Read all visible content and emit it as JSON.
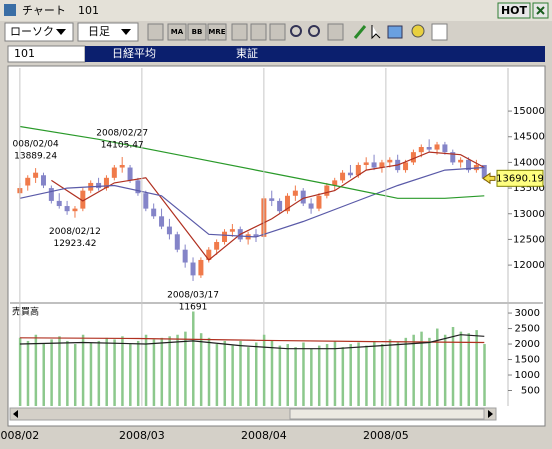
{
  "window": {
    "title": "チャート",
    "code": "101",
    "hot": "HOT"
  },
  "toolbar": {
    "chart_type": "ローソク",
    "period": "日足",
    "icons": [
      "MA",
      "BB",
      "MRE"
    ]
  },
  "info": {
    "code": "101",
    "name": "日経平均",
    "market": "東証"
  },
  "chart_data": {
    "type": "candlestick",
    "up_color": "#f07a4a",
    "down_color": "#8484c8",
    "xlim": [
      -1,
      61
    ],
    "xticks": [
      {
        "value": 0,
        "label": "008/02"
      },
      {
        "value": 15.5,
        "label": "2008/03"
      },
      {
        "value": 31,
        "label": "2008/04"
      },
      {
        "value": 46.5,
        "label": "2008/05"
      }
    ],
    "ylim": [
      11320,
      15800
    ],
    "yticks": [
      12000,
      12500,
      13000,
      13500,
      14000,
      14500,
      15000
    ],
    "grid": true,
    "candles": [
      [
        13400,
        13600,
        13300,
        13500
      ],
      [
        13550,
        13750,
        13450,
        13700
      ],
      [
        13700,
        13889.24,
        13600,
        13800
      ],
      [
        13750,
        13800,
        13500,
        13550
      ],
      [
        13500,
        13550,
        13200,
        13250
      ],
      [
        13250,
        13400,
        13100,
        13150
      ],
      [
        13150,
        13250,
        12980,
        13050
      ],
      [
        13050,
        13150,
        12923.42,
        13100
      ],
      [
        13100,
        13500,
        13050,
        13450
      ],
      [
        13450,
        13650,
        13400,
        13600
      ],
      [
        13600,
        13700,
        13450,
        13500
      ],
      [
        13500,
        13750,
        13450,
        13700
      ],
      [
        13700,
        13950,
        13650,
        13900
      ],
      [
        13900,
        14105.47,
        13800,
        13950
      ],
      [
        13900,
        13950,
        13600,
        13650
      ],
      [
        13650,
        13700,
        13350,
        13400
      ],
      [
        13400,
        13450,
        13050,
        13100
      ],
      [
        13100,
        13200,
        12900,
        12950
      ],
      [
        12950,
        13100,
        12700,
        12750
      ],
      [
        12750,
        12900,
        12500,
        12600
      ],
      [
        12600,
        12650,
        12250,
        12300
      ],
      [
        12300,
        12400,
        11950,
        12050
      ],
      [
        12050,
        12150,
        11691,
        11800
      ],
      [
        11800,
        12150,
        11750,
        12100
      ],
      [
        12100,
        12350,
        12050,
        12300
      ],
      [
        12300,
        12500,
        12200,
        12450
      ],
      [
        12450,
        12700,
        12400,
        12650
      ],
      [
        12650,
        12800,
        12550,
        12700
      ],
      [
        12700,
        12750,
        12450,
        12500
      ],
      [
        12500,
        12650,
        12400,
        12600
      ],
      [
        12600,
        12700,
        12450,
        12550
      ],
      [
        12550,
        13350,
        12550,
        13300
      ],
      [
        13300,
        13450,
        13150,
        13250
      ],
      [
        13250,
        13300,
        13000,
        13050
      ],
      [
        13050,
        13400,
        13000,
        13350
      ],
      [
        13350,
        13550,
        13250,
        13450
      ],
      [
        13450,
        13500,
        13150,
        13200
      ],
      [
        13200,
        13300,
        13000,
        13100
      ],
      [
        13100,
        13400,
        13050,
        13350
      ],
      [
        13350,
        13600,
        13300,
        13550
      ],
      [
        13550,
        13700,
        13450,
        13650
      ],
      [
        13650,
        13850,
        13600,
        13800
      ],
      [
        13800,
        13950,
        13700,
        13750
      ],
      [
        13750,
        14000,
        13700,
        13950
      ],
      [
        13950,
        14100,
        13850,
        14000
      ],
      [
        14000,
        14150,
        13850,
        13900
      ],
      [
        13900,
        14050,
        13800,
        14000
      ],
      [
        14000,
        14100,
        13900,
        14050
      ],
      [
        14050,
        14150,
        13800,
        13850
      ],
      [
        13850,
        14050,
        13800,
        14000
      ],
      [
        14000,
        14250,
        13950,
        14200
      ],
      [
        14200,
        14350,
        14100,
        14300
      ],
      [
        14300,
        14450,
        14200,
        14250
      ],
      [
        14250,
        14400,
        14150,
        14350
      ],
      [
        14350,
        14400,
        14150,
        14200
      ],
      [
        14200,
        14250,
        13950,
        14000
      ],
      [
        14000,
        14100,
        13900,
        14050
      ],
      [
        14050,
        14100,
        13800,
        13850
      ],
      [
        13850,
        14050,
        13800,
        13950
      ],
      [
        13950,
        13950,
        13650,
        13690.19
      ]
    ],
    "lines": [
      {
        "color": "#b03020",
        "x": [
          4,
          8,
          12,
          16,
          20,
          24,
          28,
          32,
          36,
          40,
          44,
          48,
          52,
          56,
          59
        ],
        "values": [
          13650,
          13250,
          13600,
          13700,
          12900,
          12100,
          12600,
          12900,
          13300,
          13450,
          13850,
          13950,
          14200,
          14150,
          13900
        ]
      },
      {
        "color": "#5a5aa8",
        "x": [
          0,
          6,
          12,
          18,
          24,
          30,
          36,
          42,
          48,
          54,
          59
        ],
        "values": [
          13300,
          13500,
          13550,
          13350,
          12600,
          12550,
          12850,
          13200,
          13550,
          13850,
          13900
        ]
      },
      {
        "color": "#2a9a2a",
        "x": [
          0,
          10,
          20,
          30,
          40,
          48,
          54,
          59
        ],
        "values": [
          14700,
          14450,
          14150,
          13850,
          13550,
          13300,
          13300,
          13350
        ]
      }
    ],
    "annotations": [
      {
        "date": "008/02/04",
        "value": 13889.24
      },
      {
        "date": "2008/02/12",
        "value": 12923.42
      },
      {
        "date": "2008/02/27",
        "value": 14105.47
      },
      {
        "date": "2008/03/17",
        "value": 11691
      }
    ],
    "volume": {
      "title": "売買高",
      "color": "#8cc88c",
      "ylim": [
        0,
        3260
      ],
      "yticks": [
        500,
        1000,
        1500,
        2000,
        2500,
        3000
      ],
      "values": [
        2200,
        2100,
        2300,
        2000,
        2150,
        2250,
        2100,
        2000,
        2300,
        2050,
        2100,
        2200,
        2150,
        2250,
        2000,
        2100,
        2300,
        2150,
        2200,
        2250,
        2300,
        2400,
        3050,
        2350,
        2200,
        2000,
        2100,
        1950,
        2100,
        1900,
        2050,
        2300,
        2100,
        1950,
        2000,
        1900,
        2050,
        1850,
        1950,
        2000,
        2100,
        1900,
        2000,
        2050,
        1950,
        2100,
        2000,
        2150,
        2050,
        2200,
        2300,
        2400,
        2200,
        2500,
        2300,
        2550,
        2400,
        2350,
        2450,
        2000
      ],
      "lines": [
        {
          "color": "#b03020",
          "x": [
            0,
            15,
            30,
            45,
            59
          ],
          "values": [
            2200,
            2180,
            2120,
            2080,
            2050
          ]
        },
        {
          "color": "#202020",
          "x": [
            0,
            8,
            16,
            22,
            28,
            34,
            40,
            46,
            52,
            56,
            59
          ],
          "values": [
            2000,
            2050,
            2000,
            2100,
            1950,
            1850,
            1850,
            1950,
            2050,
            2300,
            2250
          ]
        }
      ]
    }
  }
}
